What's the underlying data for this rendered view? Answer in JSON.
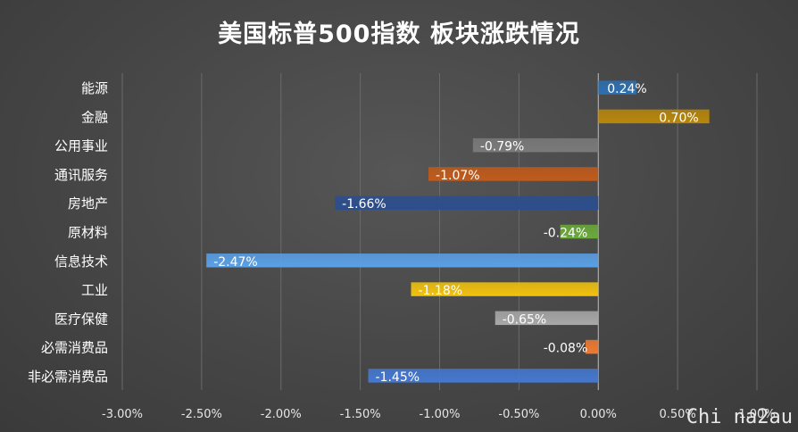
{
  "chart_data": {
    "type": "bar",
    "orientation": "horizontal",
    "title": "美国标普500指数 板块涨跌情况",
    "categories": [
      "能源",
      "金融",
      "公用事业",
      "通讯服务",
      "房地产",
      "原材料",
      "信息技术",
      "工业",
      "医疗保健",
      "必需消费品",
      "非必需消费品"
    ],
    "values": [
      0.24,
      0.7,
      -0.79,
      -1.07,
      -1.66,
      -0.24,
      -2.47,
      -1.18,
      -0.65,
      -0.08,
      -1.45
    ],
    "data_labels": [
      "0.24%",
      "0.70%",
      "-0.79%",
      "-1.07%",
      "-1.66%",
      "-0.24%",
      "-2.47%",
      "-1.18%",
      "-0.65%",
      "-0.08%",
      "-1.45%"
    ],
    "colors": [
      "#2e6faf",
      "#b8860b",
      "#7a7a7a",
      "#c05a1a",
      "#2c4e8e",
      "#6aaa3a",
      "#5aa0e6",
      "#f2c20e",
      "#a8a8a8",
      "#f07a30",
      "#4478d0"
    ],
    "xlim": [
      -3.0,
      1.0
    ],
    "xticks": [
      "-3.00%",
      "-2.50%",
      "-2.00%",
      "-1.50%",
      "-1.00%",
      "-0.50%",
      "0.00%",
      "0.50%",
      "1.00%"
    ],
    "xlabel": "",
    "ylabel": "",
    "grid": true,
    "legend": "none"
  },
  "watermark": "Chi na2au"
}
